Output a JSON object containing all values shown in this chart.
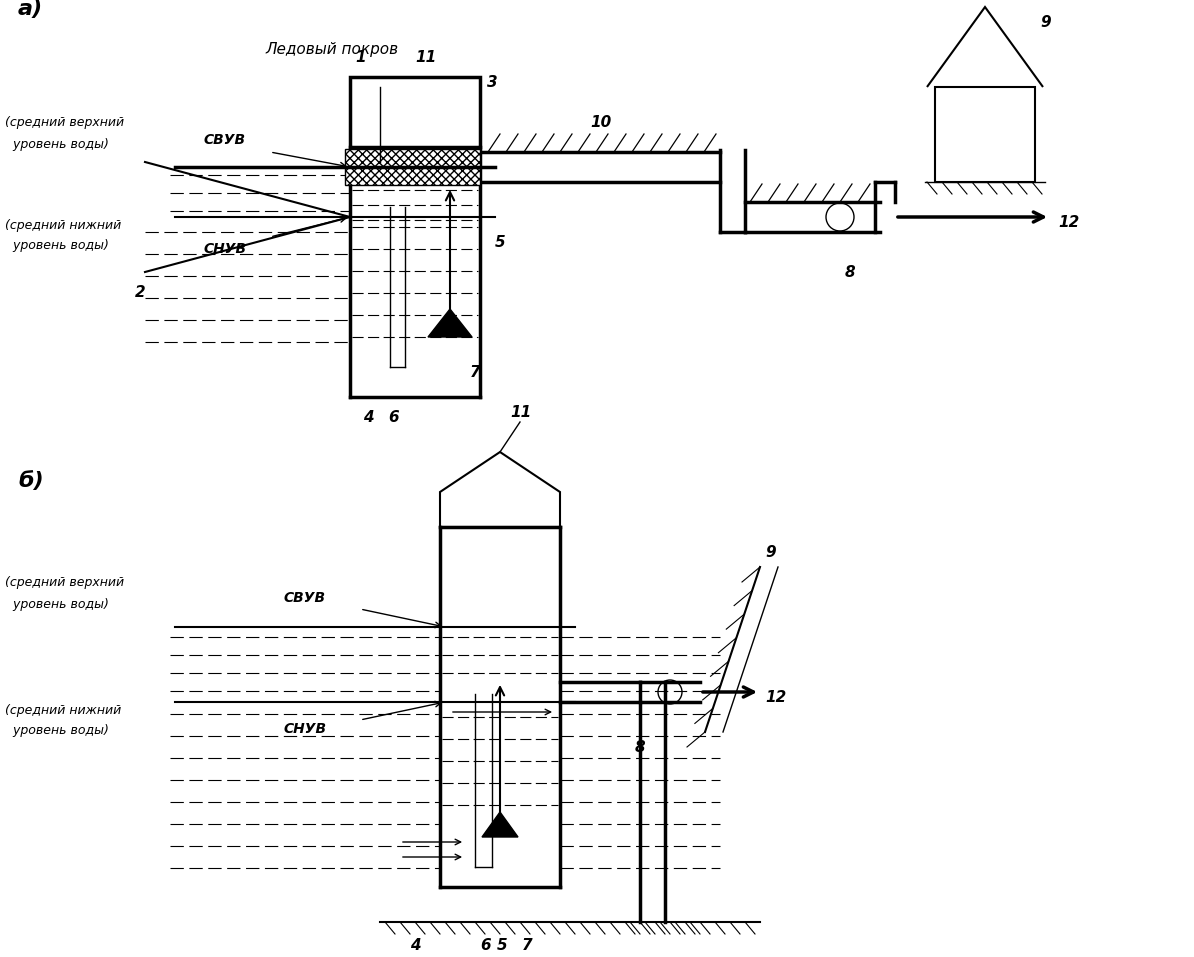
{
  "background_color": "#ffffff",
  "label_a": "а)",
  "label_b": "б)",
  "ice_cover_label": "Ледовый покров",
  "svuv_label": "СВУВ",
  "snuv_label": "СНУВ",
  "upper_water_line1": "(средний верхний",
  "upper_water_line2": "  уровень воды)",
  "lower_water_line1": "(средний нижний",
  "lower_water_line2": "  уровень воды)"
}
